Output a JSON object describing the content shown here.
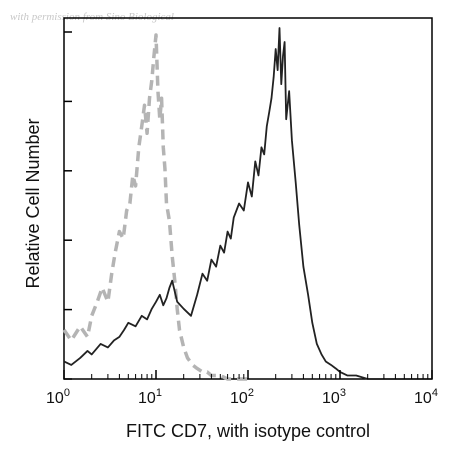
{
  "watermark": "with permission from Sino Biological",
  "chart_data": {
    "type": "line",
    "title": "",
    "xlabel": "FITC CD7, with isotype control",
    "ylabel": "Relative Cell Number",
    "x_scale": "log",
    "xlim": [
      1,
      10000
    ],
    "ylim": [
      0,
      1.0
    ],
    "grid": false,
    "legend": "none",
    "x_ticks": [
      {
        "base": "10",
        "exp": "0",
        "value": 1
      },
      {
        "base": "10",
        "exp": "1",
        "value": 10
      },
      {
        "base": "10",
        "exp": "2",
        "value": 100
      },
      {
        "base": "10",
        "exp": "3",
        "value": 1000
      },
      {
        "base": "10",
        "exp": "4",
        "value": 10000
      }
    ],
    "series": [
      {
        "style": "dashed",
        "color": "#b4b4b4",
        "x": [
          1.0,
          1.2,
          1.5,
          1.8,
          2.0,
          2.3,
          2.6,
          3.0,
          3.3,
          3.6,
          4.0,
          4.4,
          4.8,
          5.2,
          5.6,
          6.0,
          6.5,
          7.0,
          7.5,
          8.0,
          8.5,
          9.0,
          9.5,
          10.0,
          10.5,
          11.0,
          11.5,
          12.0,
          12.5,
          13.0,
          14.0,
          15.0,
          16.0,
          17.0,
          18.0,
          20.0,
          22.0,
          25.0,
          28.0,
          32.0,
          36.0,
          40.0,
          50.0,
          60.0,
          80.0,
          100.0
        ],
        "y": [
          0.14,
          0.11,
          0.15,
          0.12,
          0.18,
          0.22,
          0.26,
          0.22,
          0.3,
          0.36,
          0.42,
          0.4,
          0.48,
          0.5,
          0.58,
          0.55,
          0.66,
          0.72,
          0.78,
          0.7,
          0.8,
          0.85,
          0.92,
          0.98,
          0.82,
          0.74,
          0.8,
          0.66,
          0.6,
          0.5,
          0.45,
          0.35,
          0.28,
          0.2,
          0.14,
          0.09,
          0.06,
          0.04,
          0.03,
          0.02,
          0.02,
          0.01,
          0.01,
          0.0,
          0.0,
          0.0
        ]
      },
      {
        "style": "solid",
        "color": "#222222",
        "x": [
          1.0,
          1.2,
          1.5,
          1.8,
          2.0,
          2.5,
          3.0,
          3.5,
          4.0,
          4.5,
          5.0,
          6.0,
          7.0,
          8.0,
          9.0,
          10.0,
          11.0,
          12.0,
          13.0,
          14.0,
          15.0,
          17.0,
          20.0,
          24.0,
          28.0,
          32.0,
          36.0,
          40.0,
          45.0,
          50.0,
          55.0,
          60.0,
          65.0,
          70.0,
          80.0,
          90.0,
          100.0,
          110.0,
          120.0,
          130.0,
          140.0,
          150.0,
          160.0,
          170.0,
          180.0,
          190.0,
          200.0,
          210.0,
          220.0,
          230.0,
          240.0,
          250.0,
          260.0,
          280.0,
          300.0,
          330.0,
          360.0,
          400.0,
          450.0,
          500.0,
          560.0,
          630.0,
          700.0,
          800.0,
          900.0,
          1000.0,
          1200.0,
          1500.0,
          2000.0,
          3000.0,
          5000.0,
          10000.0
        ],
        "y": [
          0.05,
          0.04,
          0.06,
          0.08,
          0.07,
          0.1,
          0.09,
          0.11,
          0.12,
          0.14,
          0.16,
          0.15,
          0.18,
          0.17,
          0.2,
          0.22,
          0.24,
          0.21,
          0.23,
          0.26,
          0.28,
          0.22,
          0.2,
          0.18,
          0.24,
          0.3,
          0.28,
          0.34,
          0.32,
          0.38,
          0.36,
          0.42,
          0.4,
          0.46,
          0.5,
          0.48,
          0.56,
          0.52,
          0.62,
          0.58,
          0.66,
          0.64,
          0.72,
          0.76,
          0.8,
          0.86,
          0.94,
          0.88,
          1.0,
          0.84,
          0.92,
          0.96,
          0.74,
          0.82,
          0.68,
          0.56,
          0.44,
          0.32,
          0.24,
          0.16,
          0.1,
          0.07,
          0.05,
          0.04,
          0.03,
          0.02,
          0.01,
          0.01,
          0.0,
          0.0,
          0.0,
          0.0
        ]
      }
    ]
  }
}
